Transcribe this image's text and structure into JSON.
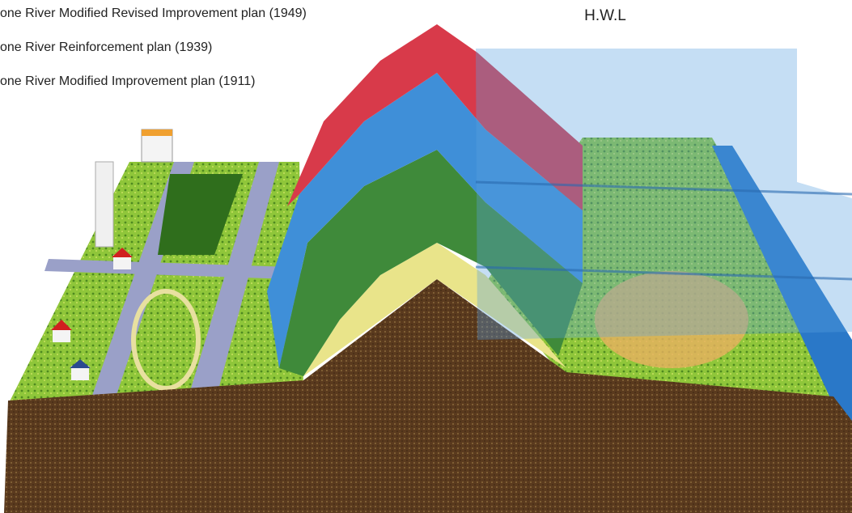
{
  "legend": {
    "items": [
      "one River Modified Revised Improvement plan (1949)",
      "one River Reinforcement plan (1939)",
      "one River Modified Improvement plan (1911)"
    ]
  },
  "water_label": "H.W.L"
}
